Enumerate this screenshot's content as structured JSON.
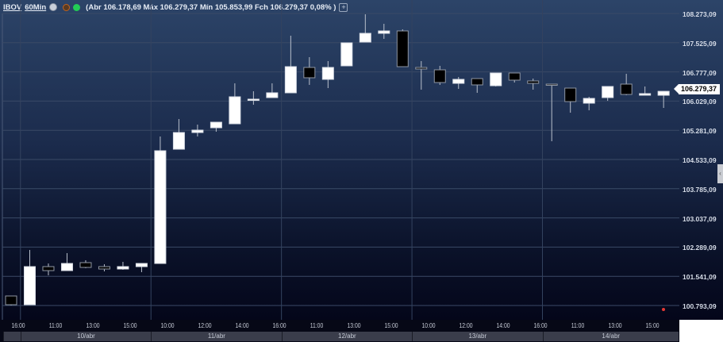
{
  "header": {
    "symbol": "IBOV",
    "interval": "60Min",
    "ohlc_text": "(Abr 106.178,69 Máx 106.279,37 Mín 105.853,99 Fch 106.279,37 0,08% )",
    "add_label": "+",
    "icons": [
      "settings-icon",
      "record-icon",
      "live-status-icon"
    ]
  },
  "colors": {
    "up": "#ffffff",
    "down": "#000000",
    "wick": "#b9c0cc",
    "grid": "#3a4a66",
    "live": "#22cc55",
    "marker": "#e53935"
  },
  "current_price_label": "106.279,37",
  "scroll_handle_label": "‹",
  "chart_data": {
    "type": "candlestick",
    "title": "",
    "y_ticks": [
      "108.273,09",
      "107.525,09",
      "106.777,09",
      "106.029,09",
      "105.281,09",
      "104.533,09",
      "103.785,09",
      "103.037,09",
      "102.289,09",
      "101.541,09",
      "100.793,09"
    ],
    "y_tick_values": [
      108273.09,
      107525.09,
      106777.09,
      106029.09,
      105281.09,
      104533.09,
      103785.09,
      103037.09,
      102289.09,
      101541.09,
      100793.09
    ],
    "ylim": [
      100793.09,
      108273.09
    ],
    "grid": true,
    "x_tick_labels": [
      {
        "candle": 0,
        "label": "16:00"
      },
      {
        "candle": 2,
        "label": "11:00"
      },
      {
        "candle": 4,
        "label": "13:00"
      },
      {
        "candle": 6,
        "label": "15:00"
      },
      {
        "candle": 8,
        "label": "10:00"
      },
      {
        "candle": 10,
        "label": "12:00"
      },
      {
        "candle": 12,
        "label": "14:00"
      },
      {
        "candle": 14,
        "label": "16:00"
      },
      {
        "candle": 16,
        "label": "11:00"
      },
      {
        "candle": 18,
        "label": "13:00"
      },
      {
        "candle": 20,
        "label": "15:00"
      },
      {
        "candle": 22,
        "label": "10:00"
      },
      {
        "candle": 24,
        "label": "12:00"
      },
      {
        "candle": 26,
        "label": "14:00"
      },
      {
        "candle": 28,
        "label": "16:00"
      },
      {
        "candle": 30,
        "label": "11:00"
      },
      {
        "candle": 32,
        "label": "13:00"
      },
      {
        "candle": 34,
        "label": "15:00"
      }
    ],
    "days": [
      {
        "label": "10/abr",
        "first_candle": 1,
        "last_candle": 7
      },
      {
        "label": "11/abr",
        "first_candle": 8,
        "last_candle": 14
      },
      {
        "label": "12/abr",
        "first_candle": 15,
        "last_candle": 21
      },
      {
        "label": "13/abr",
        "first_candle": 22,
        "last_candle": 28
      },
      {
        "label": "14/abr",
        "first_candle": 29,
        "last_candle": 35
      }
    ],
    "candles": [
      [
        101037,
        101037,
        100793,
        100813
      ],
      [
        100813,
        102216,
        100813,
        101789
      ],
      [
        101789,
        101870,
        101566,
        101687
      ],
      [
        101687,
        102135,
        101687,
        101870
      ],
      [
        101891,
        101952,
        101748,
        101769
      ],
      [
        101789,
        101850,
        101667,
        101728
      ],
      [
        101728,
        101911,
        101708,
        101789
      ],
      [
        101789,
        101870,
        101647,
        101870
      ],
      [
        101870,
        105123,
        101870,
        104757
      ],
      [
        104797,
        105570,
        104797,
        105224
      ],
      [
        105224,
        105427,
        105123,
        105285
      ],
      [
        105346,
        105488,
        105245,
        105488
      ],
      [
        105448,
        106484,
        105448,
        106139
      ],
      [
        106078,
        106281,
        105936,
        106078
      ],
      [
        106119,
        106484,
        106119,
        106241
      ],
      [
        106241,
        107704,
        106241,
        106911
      ],
      [
        106891,
        107155,
        106444,
        106627
      ],
      [
        106586,
        107054,
        106362,
        106891
      ],
      [
        106932,
        107521,
        106932,
        107521
      ],
      [
        107541,
        108253,
        107541,
        107765
      ],
      [
        107765,
        108009,
        107623,
        107826
      ],
      [
        107826,
        107867,
        106911,
        106911
      ],
      [
        106891,
        107054,
        106322,
        106850
      ],
      [
        106830,
        106932,
        106444,
        106505
      ],
      [
        106484,
        106647,
        106342,
        106586
      ],
      [
        106606,
        106606,
        106241,
        106444
      ],
      [
        106423,
        106749,
        106403,
        106749
      ],
      [
        106749,
        106749,
        106505,
        106566
      ],
      [
        106545,
        106606,
        106322,
        106484
      ],
      [
        106464,
        106464,
        105001,
        106444
      ],
      [
        106362,
        106362,
        105732,
        106017
      ],
      [
        105976,
        106139,
        105793,
        106098
      ],
      [
        106119,
        106403,
        106037,
        106403
      ],
      [
        106464,
        106728,
        106180,
        106200
      ],
      [
        106180,
        106403,
        106180,
        106220
      ],
      [
        106178.69,
        106279.37,
        105853.99,
        106279.37
      ]
    ],
    "candle_fields": [
      "open",
      "high",
      "low",
      "close"
    ],
    "last_price": 106279.37
  }
}
